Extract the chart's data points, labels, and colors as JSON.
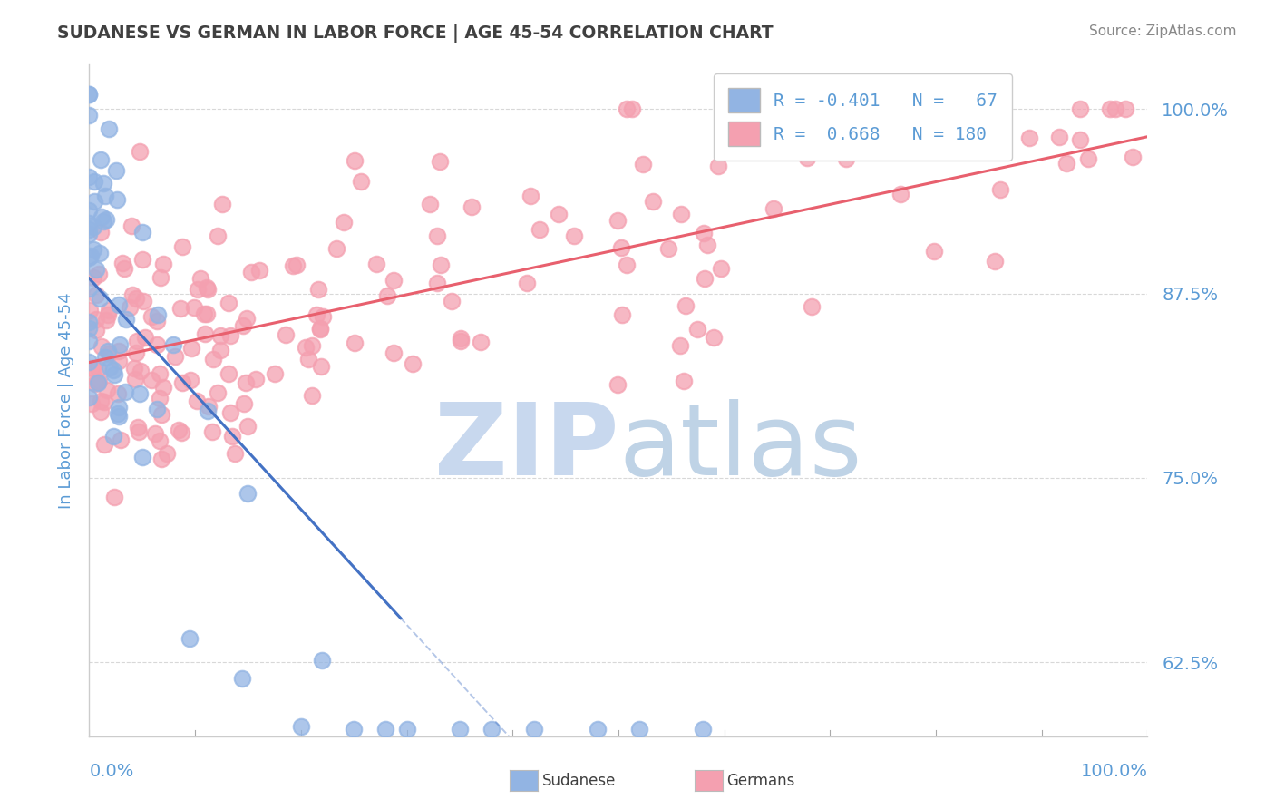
{
  "title": "SUDANESE VS GERMAN IN LABOR FORCE | AGE 45-54 CORRELATION CHART",
  "source_text": "Source: ZipAtlas.com",
  "ylabel": "In Labor Force | Age 45-54",
  "yticks": [
    0.625,
    0.75,
    0.875,
    1.0
  ],
  "ytick_labels": [
    "62.5%",
    "75.0%",
    "87.5%",
    "100.0%"
  ],
  "xlim": [
    0.0,
    1.0
  ],
  "ylim": [
    0.575,
    1.03
  ],
  "sudanese_R": -0.401,
  "sudanese_N": 67,
  "german_R": 0.668,
  "german_N": 180,
  "sudanese_color": "#92b4e3",
  "german_color": "#f4a0b0",
  "sudanese_line_color": "#4472c4",
  "german_line_color": "#e8606e",
  "title_color": "#404040",
  "axis_label_color": "#5b9bd5",
  "legend_text_color": "#5b9bd5",
  "watermark_color_zip": "#c8d8ee",
  "watermark_color_atlas": "#b0c8e0",
  "background_color": "#ffffff",
  "grid_color": "#d8d8d8",
  "grid_style": "--"
}
